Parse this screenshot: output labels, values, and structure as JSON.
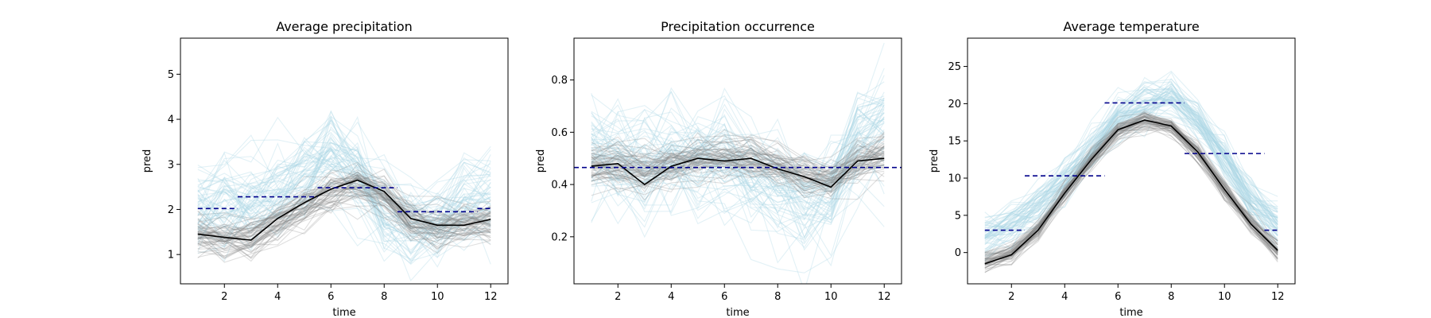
{
  "colors": {
    "light_ensemble": "#add8e6",
    "dark_ensemble": "#808080",
    "mean_line": "#000000",
    "observed_dashes": "#00008b"
  },
  "chart_data": [
    {
      "type": "line",
      "title": "Average precipitation",
      "xlabel": "time",
      "ylabel": "pred",
      "xlim": [
        0.35,
        12.65
      ],
      "ylim": [
        0.35,
        5.8
      ],
      "xticks": [
        2,
        4,
        6,
        8,
        10,
        12
      ],
      "yticks": [
        1,
        2,
        3,
        4,
        5
      ],
      "x": [
        1,
        2,
        3,
        4,
        5,
        6,
        7,
        8,
        9,
        10,
        11,
        12
      ],
      "series": [
        {
          "role": "mean",
          "values": [
            1.45,
            1.38,
            1.32,
            1.8,
            2.15,
            2.45,
            2.65,
            2.4,
            1.8,
            1.65,
            1.65,
            1.78
          ]
        },
        {
          "role": "dark-ensemble-center",
          "values": [
            1.45,
            1.38,
            1.35,
            1.75,
            2.1,
            2.4,
            2.55,
            2.3,
            1.75,
            1.65,
            1.68,
            1.75
          ]
        },
        {
          "role": "light-ensemble-center",
          "values": [
            1.95,
            2.0,
            2.05,
            2.3,
            2.8,
            3.2,
            2.7,
            1.9,
            1.6,
            1.7,
            2.2,
            2.3
          ]
        }
      ],
      "ensemble_spread": {
        "dark": 0.3,
        "light": 0.7
      },
      "ensemble_count": {
        "dark": 60,
        "light": 60
      },
      "observed_segments": [
        {
          "x0": 1,
          "x1": 2.5,
          "y": 2.02
        },
        {
          "x0": 2.5,
          "x1": 5.5,
          "y": 2.28
        },
        {
          "x0": 5.5,
          "x1": 8.5,
          "y": 2.48
        },
        {
          "x0": 8.5,
          "x1": 11.5,
          "y": 1.95
        },
        {
          "x0": 11.5,
          "x1": 12,
          "y": 2.02
        }
      ]
    },
    {
      "type": "line",
      "title": "Precipitation occurrence",
      "xlabel": "time",
      "ylabel": "pred",
      "xlim": [
        0.35,
        12.65
      ],
      "ylim": [
        0.02,
        0.96
      ],
      "xticks": [
        2,
        4,
        6,
        8,
        10,
        12
      ],
      "yticks": [
        0.2,
        0.4,
        0.6,
        0.8
      ],
      "x": [
        1,
        2,
        3,
        4,
        5,
        6,
        7,
        8,
        9,
        10,
        11,
        12
      ],
      "series": [
        {
          "role": "mean",
          "values": [
            0.47,
            0.48,
            0.4,
            0.47,
            0.5,
            0.49,
            0.5,
            0.46,
            0.43,
            0.39,
            0.49,
            0.5
          ]
        },
        {
          "role": "dark-ensemble-center",
          "values": [
            0.46,
            0.47,
            0.44,
            0.47,
            0.49,
            0.5,
            0.5,
            0.47,
            0.43,
            0.41,
            0.48,
            0.51
          ]
        },
        {
          "role": "light-ensemble-center",
          "values": [
            0.52,
            0.5,
            0.5,
            0.5,
            0.5,
            0.47,
            0.42,
            0.38,
            0.33,
            0.35,
            0.58,
            0.6
          ]
        }
      ],
      "ensemble_spread": {
        "dark": 0.05,
        "light": 0.14
      },
      "ensemble_count": {
        "dark": 60,
        "light": 60
      },
      "observed_segments": [
        {
          "x0": 0.35,
          "x1": 12.65,
          "y": 0.465
        }
      ]
    },
    {
      "type": "line",
      "title": "Average temperature",
      "xlabel": "time",
      "ylabel": "pred",
      "xlim": [
        0.35,
        12.65
      ],
      "ylim": [
        -4.2,
        28.8
      ],
      "xticks": [
        2,
        4,
        6,
        8,
        10,
        12
      ],
      "yticks": [
        0,
        5,
        10,
        15,
        20,
        25
      ],
      "x": [
        1,
        2,
        3,
        4,
        5,
        6,
        7,
        8,
        9,
        10,
        11,
        12
      ],
      "series": [
        {
          "role": "mean",
          "values": [
            -1.5,
            -0.3,
            3.0,
            8.0,
            12.5,
            16.5,
            17.8,
            17.0,
            13.5,
            8.5,
            3.8,
            0.3
          ]
        },
        {
          "role": "dark-ensemble-center",
          "values": [
            -1.3,
            -0.2,
            3.2,
            8.0,
            12.5,
            16.3,
            17.8,
            17.0,
            13.5,
            8.5,
            3.8,
            0.3
          ]
        },
        {
          "role": "light-ensemble-center",
          "values": [
            2.2,
            3.8,
            6.2,
            9.8,
            13.8,
            18.3,
            20.3,
            20.8,
            17.8,
            12.8,
            7.3,
            3.8
          ]
        }
      ],
      "ensemble_spread": {
        "dark": 0.9,
        "light": 2.0
      },
      "ensemble_count": {
        "dark": 60,
        "light": 60
      },
      "observed_segments": [
        {
          "x0": 1,
          "x1": 2.5,
          "y": 3.0
        },
        {
          "x0": 2.5,
          "x1": 5.5,
          "y": 10.3
        },
        {
          "x0": 5.5,
          "x1": 8.5,
          "y": 20.1
        },
        {
          "x0": 8.5,
          "x1": 11.5,
          "y": 13.3
        },
        {
          "x0": 11.5,
          "x1": 12,
          "y": 3.0
        }
      ]
    }
  ]
}
